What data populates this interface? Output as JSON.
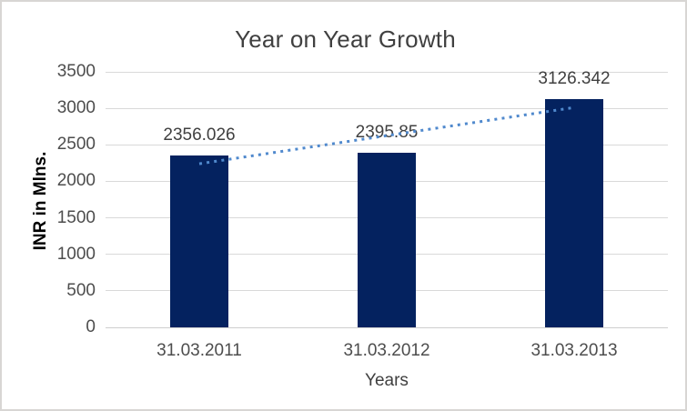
{
  "chart_data": {
    "type": "bar",
    "title": "Year on Year Growth",
    "xlabel": "Years",
    "ylabel": "INR in Mlns.",
    "categories": [
      "31.03.2011",
      "31.03.2012",
      "31.03.2013"
    ],
    "series": [
      {
        "name": "INR in Mlns.",
        "values": [
          2356.026,
          2395.85,
          3126.342
        ],
        "data_labels": [
          "2356.026",
          "2395.85",
          "3126.342"
        ]
      }
    ],
    "ylim": [
      0,
      3500
    ],
    "ytick_step": 500,
    "yticks": [
      0,
      500,
      1000,
      1500,
      2000,
      2500,
      3000,
      3500
    ],
    "grid": true,
    "legend": "none",
    "trendline": {
      "type": "linear",
      "style": "dotted"
    },
    "colors": {
      "bar": "#04225f",
      "trendline": "#5089cd",
      "gridline": "#d9d9d9",
      "axis_line": "#cfcfcf",
      "title_text": "#404040",
      "tick_text": "#4d4d4d",
      "border": "#d8d6d4",
      "background": "#ffffff"
    }
  }
}
